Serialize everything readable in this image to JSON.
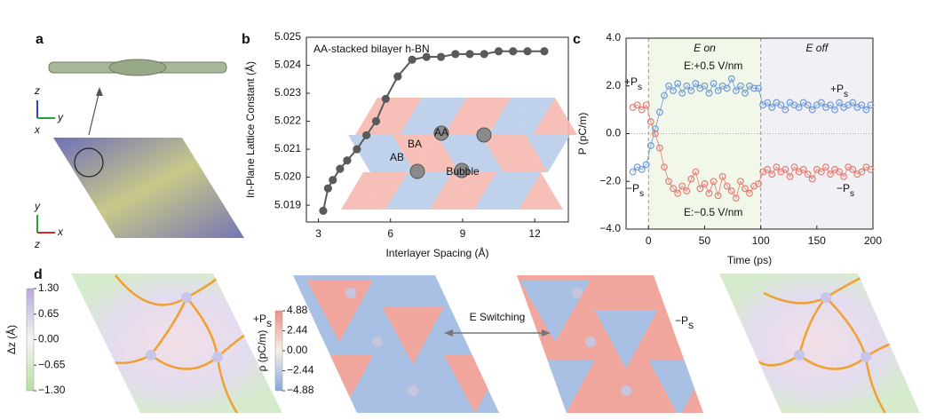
{
  "panel_labels": [
    "a",
    "b",
    "c",
    "d"
  ],
  "panel_a": {
    "axes_labels": [
      [
        "z",
        "y",
        "x"
      ],
      [
        "y",
        "x",
        "z"
      ]
    ]
  },
  "chart_data": [
    {
      "type": "line",
      "title": "AA-stacked bilayer h-BN",
      "xlabel": "Interlayer Spacing (Å)",
      "ylabel": "In-Plane Lattice Constant (Å)",
      "x": [
        3.2,
        3.4,
        3.6,
        3.9,
        4.2,
        4.6,
        5.0,
        5.4,
        5.8,
        6.3,
        6.9,
        7.5,
        8.1,
        8.7,
        9.3,
        9.9,
        10.5,
        11.1,
        11.7,
        12.4
      ],
      "series": [
        {
          "color": "#5a5a5a",
          "values": [
            5.0188,
            5.0196,
            5.0199,
            5.0203,
            5.0206,
            5.021,
            5.0215,
            5.022,
            5.0228,
            5.0236,
            5.0242,
            5.0243,
            5.0243,
            5.0244,
            5.0244,
            5.0244,
            5.0245,
            5.0245,
            5.0245,
            5.0245
          ]
        }
      ],
      "xlim": [
        2.5,
        13.4
      ],
      "ylim": [
        5.0184,
        5.025
      ],
      "xticks": [
        3,
        6,
        9,
        12
      ],
      "yticks": [
        5.019,
        {
          "value": 5.02,
          "label": "5.020"
        },
        5.021,
        5.022,
        5.023,
        5.024,
        5.025
      ],
      "grid": false,
      "inset_labels": [
        "AA",
        "BA",
        "AB",
        "Bubble"
      ]
    },
    {
      "type": "scatter",
      "xlabel": "Time (ps)",
      "ylabel": "P (pC/m)",
      "x": [
        -14,
        -10,
        -6,
        -2,
        2,
        6,
        10,
        14,
        18,
        22,
        26,
        30,
        34,
        38,
        42,
        46,
        50,
        54,
        58,
        62,
        66,
        70,
        74,
        78,
        82,
        86,
        90,
        94,
        98,
        102,
        106,
        110,
        114,
        118,
        122,
        126,
        130,
        134,
        138,
        142,
        146,
        150,
        154,
        158,
        162,
        166,
        170,
        174,
        178,
        182,
        186,
        190,
        194,
        198
      ],
      "series": [
        {
          "color": "#6f9bd8",
          "values": [
            -1.6,
            -1.4,
            -1.5,
            -1.3,
            -0.5,
            0.2,
            0.9,
            1.6,
            2.0,
            1.8,
            2.1,
            1.7,
            2.0,
            1.8,
            2.1,
            1.9,
            2.0,
            1.7,
            2.1,
            1.8,
            2.0,
            1.9,
            2.3,
            1.8,
            2.0,
            1.7,
            2.0,
            1.9,
            1.9,
            1.2,
            1.3,
            1.1,
            1.3,
            1.2,
            1.0,
            1.3,
            1.2,
            1.1,
            1.3,
            1.2,
            1.0,
            1.2,
            1.3,
            1.1,
            1.2,
            1.0,
            1.3,
            1.1,
            1.2,
            1.3,
            1.1,
            1.2,
            1.0,
            1.2
          ]
        },
        {
          "color": "#e67d72",
          "values": [
            1.1,
            1.2,
            1.0,
            1.2,
            0.5,
            0.0,
            -0.6,
            -1.4,
            -2.0,
            -2.3,
            -2.5,
            -2.2,
            -2.4,
            -1.9,
            -1.6,
            -2.3,
            -2.1,
            -2.5,
            -2.0,
            -2.6,
            -1.8,
            -2.2,
            -2.4,
            -2.7,
            -2.0,
            -2.3,
            -2.5,
            -2.2,
            -2.1,
            -1.6,
            -1.5,
            -1.7,
            -1.4,
            -1.6,
            -1.5,
            -1.8,
            -1.4,
            -1.6,
            -1.5,
            -1.7,
            -1.9,
            -1.5,
            -1.6,
            -1.4,
            -1.7,
            -1.5,
            -1.6,
            -1.8,
            -1.4,
            -1.5,
            -1.7,
            -1.6,
            -1.4,
            -1.5
          ]
        }
      ],
      "connected": true,
      "xlim": [
        -20,
        200
      ],
      "ylim": [
        -4,
        4
      ],
      "xticks": [
        0,
        50,
        100,
        150,
        200
      ],
      "yticks": [
        {
          "value": -4,
          "label": "−4.0"
        },
        {
          "value": -2,
          "label": "−2.0"
        },
        {
          "value": 0,
          "label": "0.0"
        },
        {
          "value": 2,
          "label": "2.0"
        },
        {
          "value": 4,
          "label": "4.0"
        }
      ],
      "hlines": [
        0
      ],
      "vlines": [
        0,
        100
      ],
      "regions": [
        {
          "xlim": [
            0,
            100
          ],
          "color": "#f1f7e9",
          "label": "E on"
        },
        {
          "xlim": [
            100,
            200
          ],
          "color": "#f1f1f5",
          "label": "E off"
        }
      ],
      "annotations": [
        {
          "text": "+P",
          "subscript": "s"
        },
        {
          "text": "−P",
          "subscript": "s"
        },
        {
          "text": "+P",
          "subscript": "s"
        },
        {
          "text": "−P",
          "subscript": "s"
        },
        {
          "text": "E:+0.5 V/nm"
        },
        {
          "text": "E:−0.5 V/nm"
        }
      ]
    }
  ],
  "panel_d": {
    "plus": {
      "text": "+P",
      "subscript": "s"
    },
    "switching": "E Switching",
    "minus": {
      "text": "−P",
      "subscript": "s"
    },
    "colorbars": [
      {
        "label": "Δz (Å)",
        "lim": [
          -1.3,
          1.3
        ],
        "ticks": [
          {
            "value": 1.3,
            "label": "1.30"
          },
          {
            "value": 0.65,
            "label": "0.65"
          },
          {
            "value": 0,
            "label": "0.00"
          },
          {
            "value": -0.65,
            "label": "−0.65"
          },
          {
            "value": -1.3,
            "label": "−1.30"
          }
        ]
      },
      {
        "label": "ρ (pC/m)",
        "lim": [
          -4.88,
          4.88
        ],
        "ticks": [
          {
            "value": 4.88,
            "label": "4.88"
          },
          {
            "value": 2.44,
            "label": "2.44"
          },
          {
            "value": 0,
            "label": "0.00"
          },
          {
            "value": -2.44,
            "label": "−2.44"
          },
          {
            "value": -4.88,
            "label": "−4.88"
          }
        ]
      }
    ]
  }
}
